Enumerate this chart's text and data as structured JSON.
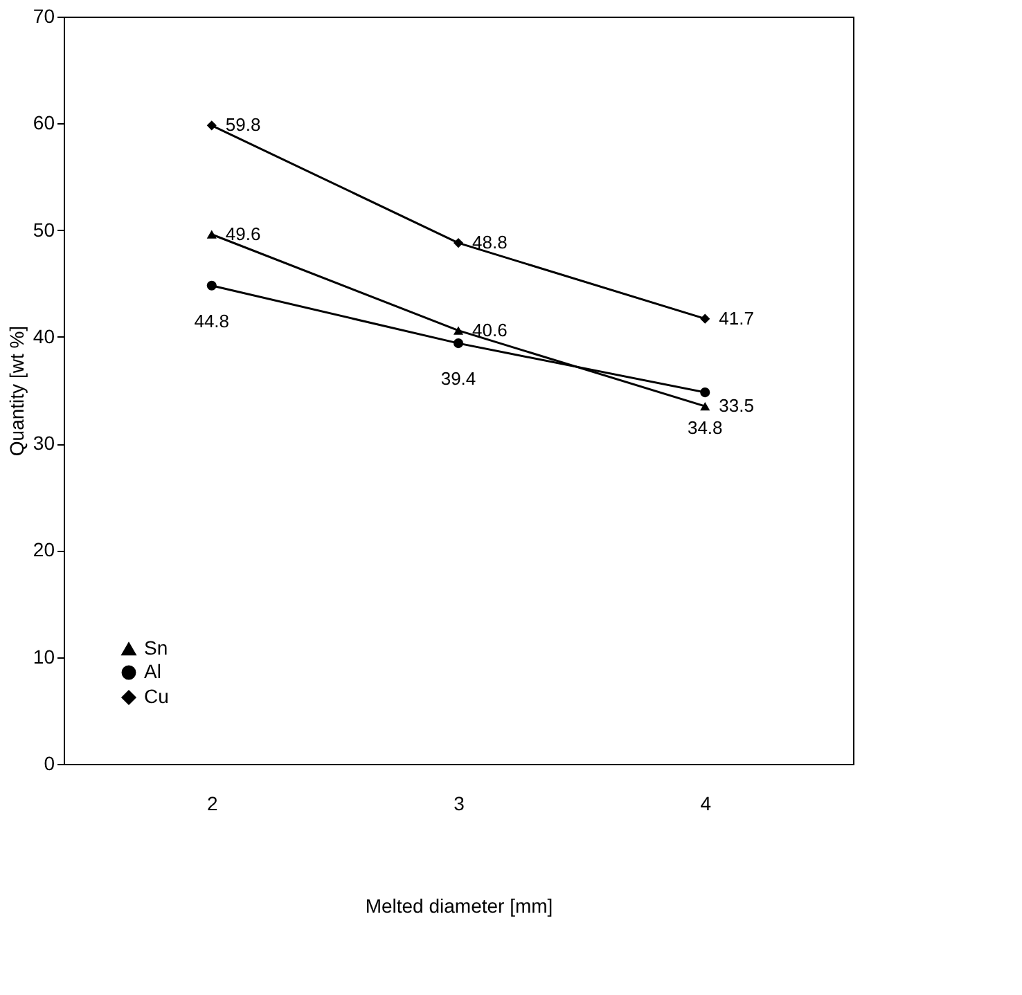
{
  "chart_data": {
    "type": "line",
    "xlabel": "Melted diameter [mm]",
    "ylabel": "Quantity [wt %]",
    "categories": [
      "2",
      "3",
      "4"
    ],
    "ylim": [
      0,
      70
    ],
    "yticks": [
      0,
      10,
      20,
      30,
      40,
      50,
      60,
      70
    ],
    "grid": false,
    "legend": "bottom left",
    "data_labels": true,
    "line_style": "solid",
    "series": [
      {
        "name": "Sn",
        "color": "#000000",
        "marker": "triangle",
        "values": [
          49.6,
          40.6,
          33.5
        ]
      },
      {
        "name": "Al",
        "color": "#000000",
        "marker": "circle",
        "values": [
          44.8,
          39.4,
          34.8
        ]
      },
      {
        "name": "Cu",
        "color": "#000000",
        "marker": "diamond",
        "values": [
          59.8,
          48.8,
          41.7
        ]
      }
    ]
  }
}
